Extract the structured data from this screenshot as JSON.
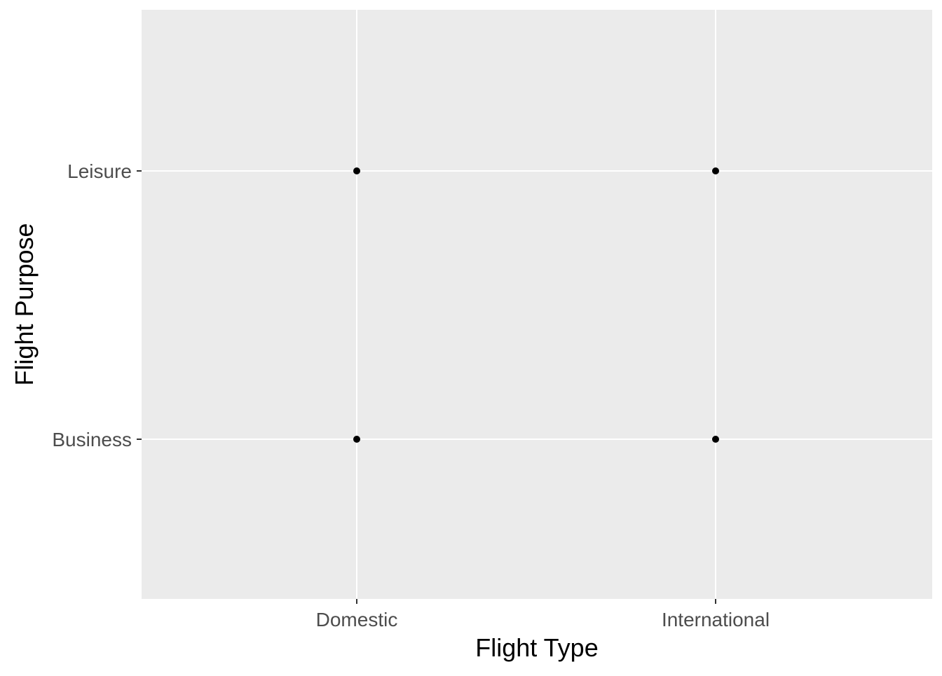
{
  "chart_data": {
    "type": "scatter",
    "title": "",
    "xlabel": "Flight Type",
    "ylabel": "Flight Purpose",
    "x_categories": [
      "Domestic",
      "International"
    ],
    "y_categories": [
      "Business",
      "Leisure"
    ],
    "points": [
      {
        "x": "Domestic",
        "y": "Leisure"
      },
      {
        "x": "International",
        "y": "Leisure"
      },
      {
        "x": "Domestic",
        "y": "Business"
      },
      {
        "x": "International",
        "y": "Business"
      }
    ],
    "grid": true,
    "legend": "none",
    "colors": {
      "panel_background": "#EBEBEB",
      "grid": "#FFFFFF",
      "point": "#000000",
      "tick_text": "#4D4D4D",
      "tick_mark": "#333333",
      "axis_title": "#000000"
    }
  }
}
